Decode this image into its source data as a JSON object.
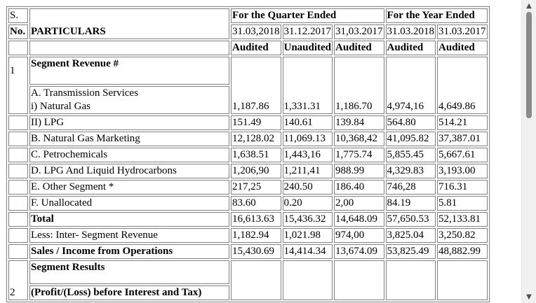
{
  "header": {
    "sno_label": "S.",
    "no_label": "No.",
    "particulars_label": "PARTICULARS",
    "quarter_label": "For the Quarter Ended",
    "year_label": "For the Year Ended",
    "dates": [
      "31.03,2018",
      "31.12.2017",
      "31,03.2017",
      "31.03.2018",
      "31.03.2017"
    ],
    "status": [
      "Audited",
      "Unaudited",
      "Audited",
      "Audited",
      "Audited"
    ]
  },
  "section1": {
    "number": "1",
    "title": "Segment Revenue #",
    "sub_a_label": "A. Transmission Services",
    "rows": [
      {
        "label": "i) Natural Gas",
        "values": [
          "1,187.86",
          "1,331.31",
          "1,186.70",
          "4,974,16",
          "4,649.86"
        ]
      },
      {
        "label": "II) LPG",
        "values": [
          "151.49",
          "140.61",
          "139.84",
          "564.80",
          "514.21"
        ]
      },
      {
        "label": "B. Natural Gas Marketing",
        "values": [
          "12,128.02",
          "11,069.13",
          "10,368,42",
          "41,095.82",
          "37,387.01"
        ]
      },
      {
        "label": "C. Petrochemicals",
        "values": [
          "1,638.51",
          "1,443,16",
          "1,775.74",
          "5,855.45",
          "5,667.61"
        ]
      },
      {
        "label": "D. LPG And Liquid Hydrocarbons",
        "values": [
          "1,206,90",
          "1,211,41",
          "988.99",
          "4,329.83",
          "3,193.00"
        ]
      },
      {
        "label": "E. Other Segment *",
        "values": [
          "217,25",
          "240.50",
          "186.40",
          "746,28",
          "716.31"
        ]
      },
      {
        "label": "F. Unallocated",
        "values": [
          "83.60",
          "0.20",
          "2,00",
          "84.19",
          "5.81"
        ]
      },
      {
        "label": "Total",
        "values": [
          "16,613.63",
          "15,436.32",
          "14,648.09",
          "57,650.53",
          "52,133.81"
        ],
        "bold": true
      },
      {
        "label": "Less: Inter- Segment Revenue",
        "values": [
          "1,182.94",
          "1,021.98",
          "974,00",
          "3,825.04",
          "3,250.82"
        ]
      },
      {
        "label": "Sales / Income from Operations",
        "values": [
          "15,430.69",
          "14,414.34",
          "13,674.09",
          "53,825.49",
          "48,882.99"
        ],
        "bold": true
      }
    ]
  },
  "section2": {
    "number": "2",
    "title": "Segment Results",
    "subtitle": "(Profit/(Loss) before Interest and Tax)"
  },
  "scrollbar": {
    "up_icon": "triangle-up",
    "down_icon": "triangle-down",
    "position_fraction": 0.0
  }
}
